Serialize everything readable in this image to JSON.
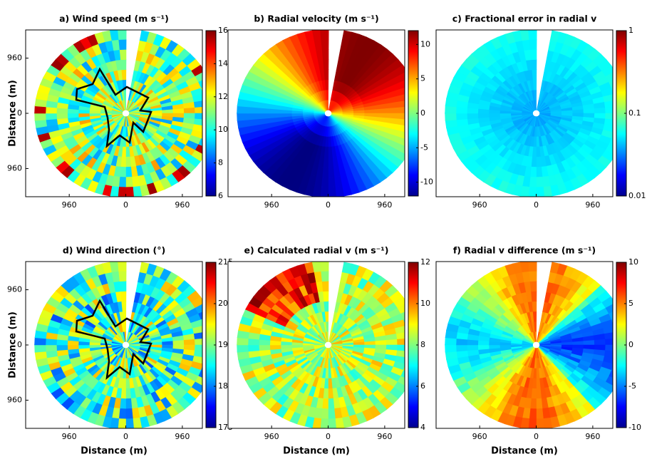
{
  "chart_data": [
    {
      "type": "heatmap",
      "title": "a) Wind speed (m s⁻¹)",
      "ylabel": "Distance (m)",
      "xlim": [
        -1700,
        1300
      ],
      "ylim": [
        -1450,
        1450
      ],
      "xticks": [
        {
          "value": -960,
          "label": "960"
        },
        0,
        960
      ],
      "yticks": [
        {
          "value": -960,
          "label": "960"
        },
        0,
        960
      ],
      "colorbar": {
        "clim": [
          6,
          16
        ],
        "ticks": [
          6,
          8,
          10,
          12,
          14,
          16
        ],
        "log": false
      }
    },
    {
      "type": "heatmap",
      "title": "b) Radial velocity (m s⁻¹)",
      "xlim": [
        -1700,
        1300
      ],
      "ylim": [
        -1450,
        1450
      ],
      "xticks": [
        {
          "value": -960,
          "label": "960"
        },
        0,
        960
      ],
      "colorbar": {
        "clim": [
          -12,
          12
        ],
        "ticks": [
          -10,
          -5,
          0,
          5,
          10
        ],
        "log": false
      }
    },
    {
      "type": "heatmap",
      "title": "c) Fractional error in radial v",
      "xlim": [
        -1700,
        1300
      ],
      "ylim": [
        -1450,
        1450
      ],
      "xticks": [
        {
          "value": -960,
          "label": "960"
        },
        0,
        960
      ],
      "colorbar": {
        "clim": [
          0.01,
          1
        ],
        "ticks": [
          0.01,
          0.1,
          1
        ],
        "log": true
      }
    },
    {
      "type": "heatmap",
      "title": "d) Wind direction (°)",
      "xlabel": "Distance (m)",
      "ylabel": "Distance (m)",
      "xlim": [
        -1700,
        1300
      ],
      "ylim": [
        -1450,
        1450
      ],
      "xticks": [
        {
          "value": -960,
          "label": "960"
        },
        0,
        960
      ],
      "yticks": [
        {
          "value": -960,
          "label": "960"
        },
        0,
        960
      ],
      "colorbar": {
        "clim": [
          175,
          215
        ],
        "ticks": [
          175,
          185,
          195,
          205,
          215
        ],
        "log": false
      }
    },
    {
      "type": "heatmap",
      "title": "e) Calculated radial v (m s⁻¹)",
      "xlabel": "Distance (m)",
      "xlim": [
        -1700,
        1300
      ],
      "ylim": [
        -1450,
        1450
      ],
      "xticks": [
        {
          "value": -960,
          "label": "960"
        },
        0,
        960
      ],
      "colorbar": {
        "clim": [
          4,
          12
        ],
        "ticks": [
          4,
          6,
          8,
          10,
          12
        ],
        "log": false
      }
    },
    {
      "type": "heatmap",
      "title": "f) Radial v difference (m s⁻¹)",
      "xlabel": "Distance (m)",
      "xlim": [
        -1700,
        1300
      ],
      "ylim": [
        -1450,
        1450
      ],
      "xticks": [
        {
          "value": -960,
          "label": "960"
        },
        0,
        960
      ],
      "colorbar": {
        "clim": [
          -10,
          10
        ],
        "ticks": [
          -10,
          -5,
          0,
          5,
          10
        ],
        "log": false
      }
    }
  ]
}
